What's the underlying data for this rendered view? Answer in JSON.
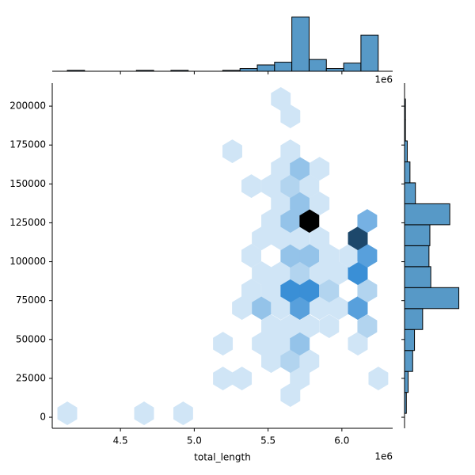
{
  "chart_data": {
    "type": "hexbin-joint",
    "x_label": "total_length",
    "x_offset_label": "1e6",
    "xlim": [
      4.038,
      6.344
    ],
    "ylim": [
      -7100,
      214800
    ],
    "xticks": [
      4.5,
      {
        "value": 5,
        "label": "5.0"
      },
      5.5,
      {
        "value": 6,
        "label": "6.0"
      }
    ],
    "yticks": [
      0,
      25000,
      50000,
      75000,
      100000,
      125000,
      150000,
      175000,
      200000
    ],
    "colors": [
      "#eef6fc",
      "#3a8fd6",
      "#000000"
    ],
    "hist_color": "#5799c7",
    "hexes": [
      {
        "x": 4.14,
        "y": 2500,
        "count": 1
      },
      {
        "x": 4.66,
        "y": 2500,
        "count": 1
      },
      {
        "x": 4.925,
        "y": 2500,
        "count": 1
      },
      {
        "x": 5.651,
        "y": 14250,
        "count": 1
      },
      {
        "x": 5.194,
        "y": 24900,
        "count": 1
      },
      {
        "x": 5.323,
        "y": 24900,
        "count": 1
      },
      {
        "x": 5.715,
        "y": 24900,
        "count": 1
      },
      {
        "x": 6.247,
        "y": 24900,
        "count": 1
      },
      {
        "x": 5.521,
        "y": 36100,
        "count": 1
      },
      {
        "x": 5.651,
        "y": 36100,
        "count": 2
      },
      {
        "x": 5.78,
        "y": 36100,
        "count": 1
      },
      {
        "x": 5.194,
        "y": 47300,
        "count": 1
      },
      {
        "x": 5.457,
        "y": 47300,
        "count": 1
      },
      {
        "x": 5.586,
        "y": 47300,
        "count": 1
      },
      {
        "x": 5.715,
        "y": 47300,
        "count": 3
      },
      {
        "x": 6.108,
        "y": 47300,
        "count": 1
      },
      {
        "x": 5.521,
        "y": 58500,
        "count": 1
      },
      {
        "x": 5.651,
        "y": 58500,
        "count": 1
      },
      {
        "x": 5.78,
        "y": 58500,
        "count": 1
      },
      {
        "x": 5.914,
        "y": 58500,
        "count": 1
      },
      {
        "x": 6.172,
        "y": 58500,
        "count": 2
      },
      {
        "x": 5.323,
        "y": 70200,
        "count": 1
      },
      {
        "x": 5.457,
        "y": 70200,
        "count": 3
      },
      {
        "x": 5.586,
        "y": 70200,
        "count": 1
      },
      {
        "x": 5.715,
        "y": 70200,
        "count": 5
      },
      {
        "x": 5.849,
        "y": 70200,
        "count": 1
      },
      {
        "x": 5.978,
        "y": 70200,
        "count": 1
      },
      {
        "x": 6.108,
        "y": 70200,
        "count": 5
      },
      {
        "x": 5.387,
        "y": 81400,
        "count": 1
      },
      {
        "x": 5.521,
        "y": 81400,
        "count": 1
      },
      {
        "x": 5.651,
        "y": 81400,
        "count": 6
      },
      {
        "x": 5.78,
        "y": 81400,
        "count": 6
      },
      {
        "x": 5.914,
        "y": 81400,
        "count": 2
      },
      {
        "x": 6.172,
        "y": 81400,
        "count": 2
      },
      {
        "x": 5.457,
        "y": 92600,
        "count": 1
      },
      {
        "x": 5.586,
        "y": 92600,
        "count": 1
      },
      {
        "x": 5.715,
        "y": 92600,
        "count": 2
      },
      {
        "x": 5.849,
        "y": 92600,
        "count": 1
      },
      {
        "x": 5.978,
        "y": 92600,
        "count": 1
      },
      {
        "x": 6.108,
        "y": 92600,
        "count": 6
      },
      {
        "x": 5.387,
        "y": 103800,
        "count": 1
      },
      {
        "x": 5.651,
        "y": 103800,
        "count": 3
      },
      {
        "x": 5.78,
        "y": 103800,
        "count": 3
      },
      {
        "x": 5.914,
        "y": 103800,
        "count": 1
      },
      {
        "x": 6.048,
        "y": 103800,
        "count": 1
      },
      {
        "x": 6.172,
        "y": 103800,
        "count": 5
      },
      {
        "x": 5.457,
        "y": 115000,
        "count": 1
      },
      {
        "x": 5.586,
        "y": 115000,
        "count": 1
      },
      {
        "x": 5.715,
        "y": 115000,
        "count": 1
      },
      {
        "x": 5.849,
        "y": 115000,
        "count": 1
      },
      {
        "x": 6.108,
        "y": 115000,
        "count": 9
      },
      {
        "x": 5.521,
        "y": 126200,
        "count": 1
      },
      {
        "x": 5.651,
        "y": 126200,
        "count": 3
      },
      {
        "x": 5.78,
        "y": 126200,
        "count": 12
      },
      {
        "x": 6.172,
        "y": 126200,
        "count": 4
      },
      {
        "x": 5.586,
        "y": 137400,
        "count": 1
      },
      {
        "x": 5.715,
        "y": 137400,
        "count": 3
      },
      {
        "x": 5.849,
        "y": 137400,
        "count": 1
      },
      {
        "x": 5.387,
        "y": 148600,
        "count": 1
      },
      {
        "x": 5.521,
        "y": 148600,
        "count": 1
      },
      {
        "x": 5.651,
        "y": 148600,
        "count": 2
      },
      {
        "x": 5.78,
        "y": 148600,
        "count": 1
      },
      {
        "x": 5.586,
        "y": 159800,
        "count": 1
      },
      {
        "x": 5.715,
        "y": 159800,
        "count": 3
      },
      {
        "x": 5.849,
        "y": 159800,
        "count": 1
      },
      {
        "x": 5.258,
        "y": 171000,
        "count": 1
      },
      {
        "x": 5.651,
        "y": 171000,
        "count": 1
      },
      {
        "x": 5.651,
        "y": 193400,
        "count": 1
      },
      {
        "x": 5.586,
        "y": 204600,
        "count": 1
      }
    ],
    "x_hist": {
      "bins": [
        4.14,
        4.257,
        4.374,
        4.491,
        4.608,
        4.725,
        4.842,
        4.959,
        5.076,
        5.193,
        5.31,
        5.427,
        5.544,
        5.661,
        5.778,
        5.895,
        6.012,
        6.129,
        6.246
      ],
      "counts": [
        1,
        0,
        0,
        0,
        1,
        0,
        1,
        0,
        0,
        1,
        3,
        7,
        10,
        60,
        13,
        3,
        9,
        40
      ],
      "ylim": [
        0,
        63
      ]
    },
    "y_hist": {
      "bins": [
        2500,
        15973,
        29446,
        42919,
        56392,
        69865,
        83338,
        96811,
        110284,
        123757,
        137230,
        150703,
        164176,
        177649,
        191122,
        204595
      ],
      "counts": [
        2,
        4,
        9,
        11,
        20,
        60,
        29,
        27,
        28,
        50,
        12,
        6,
        3,
        1,
        1
      ],
      "xlim": [
        0,
        63
      ]
    }
  }
}
